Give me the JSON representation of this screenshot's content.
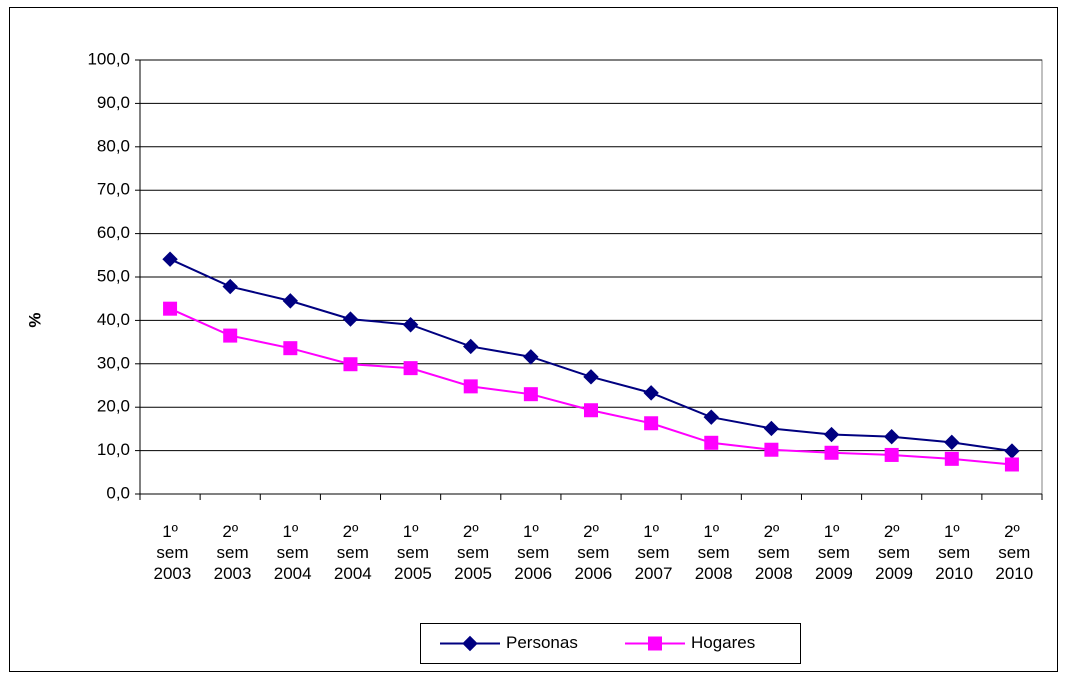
{
  "chart_data": {
    "type": "line",
    "y_label": "%",
    "categories": [
      "1º sem 2003",
      "2º sem 2003",
      "1º sem 2004",
      "2º sem 2004",
      "1º sem 2005",
      "2º sem 2005",
      "1º sem 2006",
      "2º sem 2006",
      "1º sem 2007",
      "1º sem 2008",
      "2º sem 2008",
      "1º sem 2009",
      "2º sem 2009",
      "1º sem 2010",
      "2º sem 2010"
    ],
    "series": [
      {
        "name": "Personas",
        "color": "#000080",
        "marker": "diamond",
        "values": [
          54.1,
          47.8,
          44.5,
          40.3,
          39.0,
          34.0,
          31.6,
          27.0,
          23.3,
          17.7,
          15.1,
          13.7,
          13.2,
          11.9,
          9.9
        ]
      },
      {
        "name": "Hogares",
        "color": "#ff00ff",
        "marker": "square",
        "values": [
          42.7,
          36.5,
          33.6,
          29.9,
          29.0,
          24.8,
          23.0,
          19.3,
          16.3,
          11.8,
          10.2,
          9.5,
          9.0,
          8.1,
          6.8
        ]
      }
    ],
    "ylim": [
      0,
      100
    ],
    "yticks": [
      {
        "value": 0,
        "label": "0,0"
      },
      {
        "value": 10,
        "label": "10,0"
      },
      {
        "value": 20,
        "label": "20,0"
      },
      {
        "value": 30,
        "label": "30,0"
      },
      {
        "value": 40,
        "label": "40,0"
      },
      {
        "value": 50,
        "label": "50,0"
      },
      {
        "value": 60,
        "label": "60,0"
      },
      {
        "value": 70,
        "label": "70,0"
      },
      {
        "value": 80,
        "label": "80,0"
      },
      {
        "value": 90,
        "label": "90,0"
      },
      {
        "value": 100,
        "label": "100,0"
      }
    ],
    "grid": true,
    "legend": "bottom"
  }
}
